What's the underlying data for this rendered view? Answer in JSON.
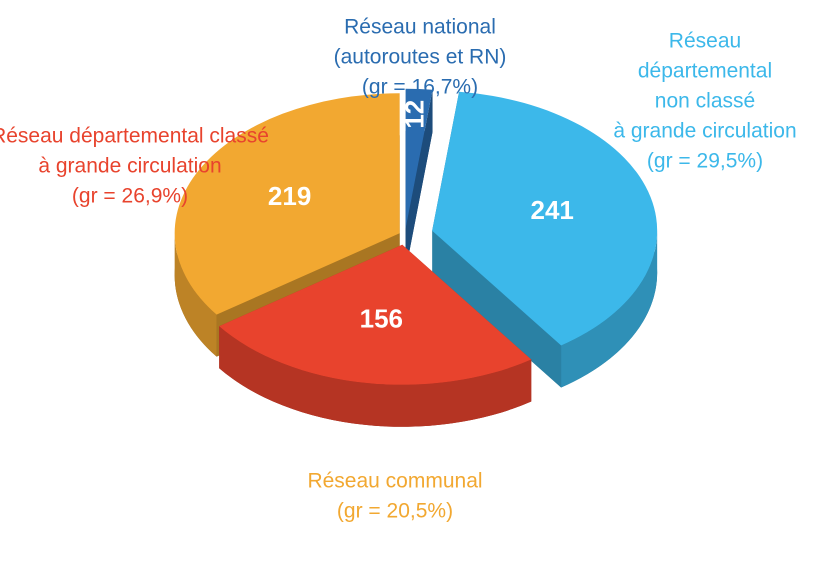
{
  "chart_data": {
    "type": "pie",
    "categories": [
      [
        "Réseau national",
        "(autoroutes et RN)",
        "(gr = 16,7%)"
      ],
      [
        "Réseau",
        "départemental",
        "non classé",
        "à grande circulation",
        "(gr = 29,5%)"
      ],
      [
        "Réseau départemental classé",
        "à grande circulation",
        "(gr = 26,9%)"
      ],
      [
        "Réseau communal",
        "(gr = 20,5%)"
      ]
    ],
    "values": [
      12,
      241,
      156,
      219
    ],
    "colors": [
      "#2a6cb0",
      "#3cb8ea",
      "#e8432d",
      "#f2a831"
    ]
  }
}
